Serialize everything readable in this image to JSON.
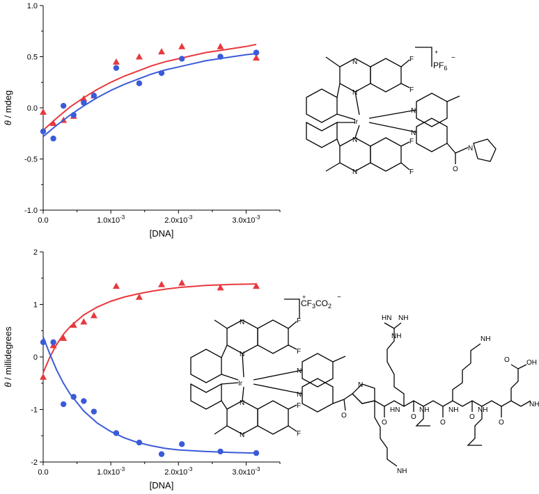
{
  "chart_data": [
    {
      "type": "scatter",
      "xlabel": "[DNA]",
      "ylabel_italic": "θ",
      "ylabel_rest": " / mdeg",
      "xlim": [
        0,
        0.0035
      ],
      "ylim": [
        -1.0,
        1.0
      ],
      "x_ticks": [
        0,
        0.001,
        0.002,
        0.003
      ],
      "x_tick_labels": [
        "0.0",
        "1.0x10",
        "2.0x10",
        "3.0x10"
      ],
      "x_tick_exponent": "-3",
      "y_ticks": [
        -1.0,
        -0.5,
        0.0,
        0.5,
        1.0
      ],
      "y_tick_labels": [
        "-1.0",
        "-0.5",
        "0.0",
        "0.5",
        "1.0"
      ],
      "series": [
        {
          "marker": "triangle",
          "color": "#e8383d",
          "x": [
            0,
            0.00015,
            0.0003,
            0.00045,
            0.0006,
            0.00075,
            0.00108,
            0.00142,
            0.00175,
            0.00205,
            0.00262,
            0.00315
          ],
          "y": [
            -0.04,
            -0.15,
            -0.12,
            -0.08,
            0.09,
            0.12,
            0.45,
            0.5,
            0.55,
            0.6,
            0.6,
            0.49
          ],
          "fit_x": [
            0,
            0.0002,
            0.0004,
            0.0006,
            0.0008,
            0.001,
            0.0012,
            0.0014,
            0.0016,
            0.0018,
            0.002,
            0.0022,
            0.0024,
            0.0026,
            0.0028,
            0.003,
            0.00315
          ],
          "fit_y": [
            -0.22,
            -0.1,
            0.01,
            0.1,
            0.18,
            0.25,
            0.31,
            0.36,
            0.41,
            0.45,
            0.48,
            0.51,
            0.54,
            0.56,
            0.58,
            0.6,
            0.62
          ]
        },
        {
          "marker": "circle",
          "color": "#3a5bd9",
          "x": [
            0,
            0.00015,
            0.0003,
            0.00045,
            0.0006,
            0.00075,
            0.00108,
            0.00142,
            0.00175,
            0.00205,
            0.00262,
            0.00315
          ],
          "y": [
            -0.23,
            -0.3,
            0.02,
            -0.07,
            0.05,
            0.12,
            0.39,
            0.24,
            0.34,
            0.48,
            0.5,
            0.54
          ],
          "fit_x": [
            0,
            0.0002,
            0.0004,
            0.0006,
            0.0008,
            0.001,
            0.0012,
            0.0014,
            0.0016,
            0.0018,
            0.002,
            0.0022,
            0.0024,
            0.0026,
            0.0028,
            0.003,
            0.00315
          ],
          "fit_y": [
            -0.28,
            -0.17,
            -0.07,
            0.02,
            0.1,
            0.17,
            0.23,
            0.28,
            0.33,
            0.37,
            0.4,
            0.43,
            0.46,
            0.48,
            0.5,
            0.52,
            0.53
          ]
        }
      ],
      "annotation": {
        "ion_base": "PF",
        "ion_sub": "6",
        "charge_plus": "+",
        "charge_minus": "−"
      }
    },
    {
      "type": "scatter",
      "xlabel": "[DNA]",
      "ylabel_italic": "θ",
      "ylabel_rest": " / millidegrees",
      "xlim": [
        0,
        0.0035
      ],
      "ylim": [
        -2,
        2
      ],
      "x_ticks": [
        0,
        0.001,
        0.002,
        0.003
      ],
      "x_tick_labels": [
        "0.0",
        "1.0x10",
        "2.0x10",
        "3.0x10"
      ],
      "x_tick_exponent": "-3",
      "y_ticks": [
        -2,
        -1,
        0,
        1,
        2
      ],
      "y_tick_labels": [
        "-2",
        "-1",
        "0",
        "1",
        "2"
      ],
      "series": [
        {
          "marker": "triangle",
          "color": "#e8383d",
          "x": [
            0,
            0.00015,
            0.0003,
            0.00045,
            0.0006,
            0.00075,
            0.00108,
            0.00142,
            0.00175,
            0.00205,
            0.00262,
            0.00315
          ],
          "y": [
            -0.38,
            0.22,
            0.36,
            0.61,
            0.67,
            0.79,
            1.35,
            1.14,
            1.38,
            1.41,
            1.32,
            1.35
          ],
          "fit_x": [
            0,
            0.0001,
            0.0002,
            0.0003,
            0.0004,
            0.0006,
            0.0008,
            0.001,
            0.0012,
            0.0014,
            0.0016,
            0.0018,
            0.002,
            0.0024,
            0.0028,
            0.00315
          ],
          "fit_y": [
            -0.3,
            0.0,
            0.24,
            0.43,
            0.58,
            0.8,
            0.95,
            1.06,
            1.14,
            1.2,
            1.25,
            1.29,
            1.32,
            1.36,
            1.38,
            1.39
          ]
        },
        {
          "marker": "circle",
          "color": "#3a5bd9",
          "x": [
            0,
            0.00015,
            0.0003,
            0.00045,
            0.0006,
            0.00075,
            0.00108,
            0.00142,
            0.00175,
            0.00205,
            0.00262,
            0.00315
          ],
          "y": [
            0.28,
            0.28,
            -0.9,
            -0.76,
            -0.84,
            -1.04,
            -1.45,
            -1.63,
            -1.85,
            -1.66,
            -1.8,
            -1.83
          ],
          "fit_x": [
            0,
            0.0001,
            0.0002,
            0.0003,
            0.0004,
            0.0006,
            0.0008,
            0.001,
            0.0012,
            0.0014,
            0.0016,
            0.0018,
            0.002,
            0.0024,
            0.0028,
            0.00315
          ],
          "fit_y": [
            0.38,
            0.05,
            -0.25,
            -0.5,
            -0.71,
            -1.03,
            -1.26,
            -1.42,
            -1.54,
            -1.63,
            -1.69,
            -1.74,
            -1.77,
            -1.8,
            -1.82,
            -1.83
          ]
        }
      ],
      "annotation": {
        "ion_base": "CF",
        "ion_sub": "3",
        "ion_mid": "CO",
        "ion_sub2": "2",
        "charge_plus": "+",
        "charge_minus": "−"
      }
    }
  ],
  "structure_atoms": {
    "N": "N",
    "F": "F",
    "Ir": "Ir",
    "O": "O",
    "NH": "NH",
    "HN": "HN",
    "NH2": "NH",
    "H2N": "H",
    "OH": "OH",
    "sub2": "2"
  }
}
